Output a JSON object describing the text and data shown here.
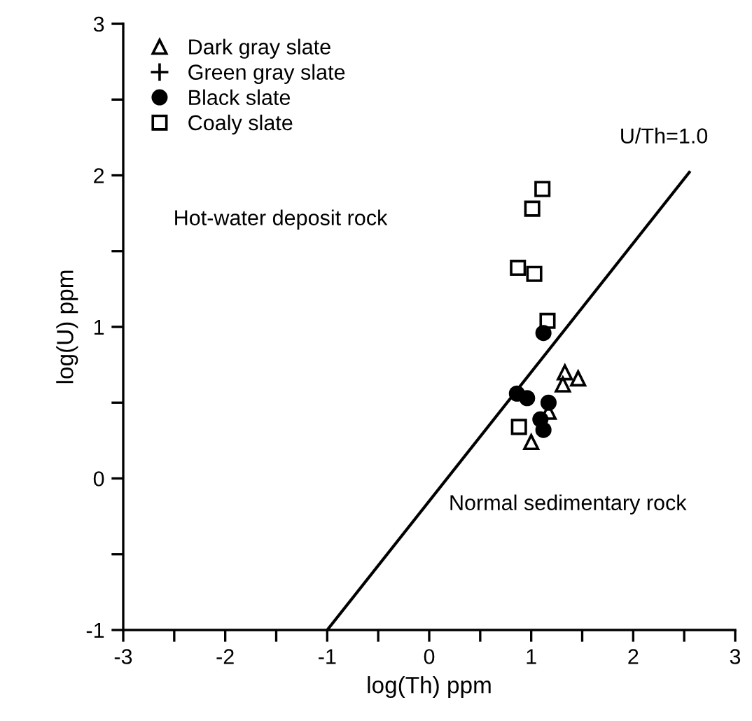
{
  "chart_data": {
    "type": "scatter",
    "xlabel": "log(Th) ppm",
    "ylabel": "log(U) ppm",
    "xlim": [
      -3,
      3
    ],
    "ylim": [
      -1,
      3
    ],
    "xticks": [
      -3,
      {
        "value": -2.5,
        "label": null
      },
      -2,
      {
        "value": -1.5,
        "label": null
      },
      -1,
      {
        "value": -0.5,
        "label": null
      },
      0,
      {
        "value": 0.5,
        "label": null
      },
      1,
      {
        "value": 1.5,
        "label": null
      },
      2,
      {
        "value": 2.5,
        "label": null
      },
      3
    ],
    "yticks": [
      -1,
      {
        "value": -0.5,
        "label": null
      },
      0,
      {
        "value": 0.5,
        "label": null
      },
      1,
      {
        "value": 1.5,
        "label": null
      },
      2,
      {
        "value": 2.5,
        "label": null
      },
      3
    ],
    "grid": false,
    "legend": "top left",
    "series": [
      {
        "name": "Dark gray slate",
        "color": "#000000",
        "marker": "triangle",
        "x": [
          1.33,
          1.46,
          1.31,
          1.0,
          1.17
        ],
        "values": [
          0.7,
          0.66,
          0.62,
          0.24,
          0.44
        ]
      },
      {
        "name": "Green gray slate",
        "color": "#000000",
        "marker": "cross"
      },
      {
        "name": "Black slate",
        "color": "#000000",
        "marker": "circle",
        "x": [
          1.12,
          0.86,
          0.96,
          1.17,
          1.09,
          1.12
        ],
        "values": [
          0.96,
          0.56,
          0.53,
          0.5,
          0.39,
          0.32
        ]
      },
      {
        "name": "Coaly slate",
        "color": "#000000",
        "marker": "square",
        "x": [
          1.11,
          1.01,
          0.87,
          1.03,
          1.16,
          0.88
        ],
        "values": [
          1.91,
          1.78,
          1.39,
          1.35,
          1.04,
          0.34
        ]
      },
      {
        "type": "line",
        "color": "#000000",
        "marker": "none",
        "line_style": "solid",
        "x": [
          -1,
          2.55
        ],
        "values": [
          -1,
          2.02
        ]
      }
    ],
    "annotations": [
      "U/Th=1.0",
      "Hot-water deposit rock",
      "Normal sedimentary rock"
    ]
  }
}
